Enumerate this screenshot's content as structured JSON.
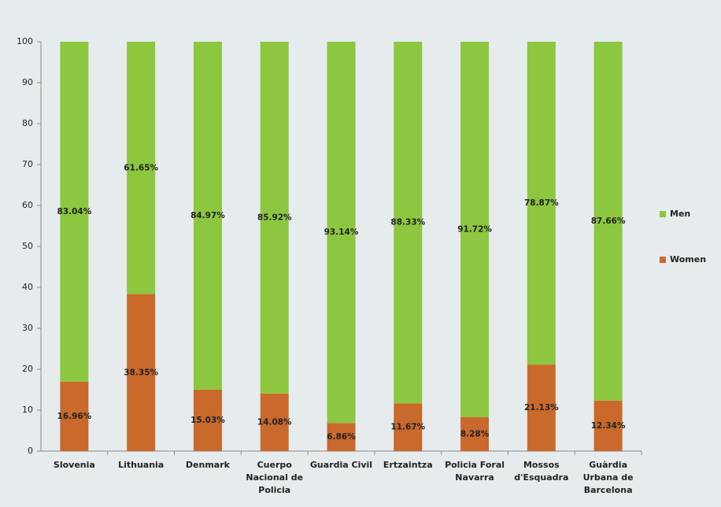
{
  "chart_data": {
    "type": "stacked_bar",
    "categories": [
      "Slovenia",
      "Lithuania",
      "Denmark",
      "Cuerpo Nacional de Policia",
      "Guardia Civil",
      "Ertzaintza",
      "Policia Foral Navarra",
      "Mossos d'Esquadra",
      "Guàrdia Urbana de Barcelona"
    ],
    "series": [
      {
        "name": "Women",
        "color": "#c9692c",
        "values": [
          16.96,
          38.35,
          15.03,
          14.08,
          6.86,
          11.67,
          8.28,
          21.13,
          12.34
        ],
        "value_labels": [
          "16.96%",
          "38.35%",
          "15.03%",
          "14.08%",
          "6.86%",
          "11.67%",
          "8.28%",
          "21.13%",
          "12.34%"
        ]
      },
      {
        "name": "Men",
        "color": "#8dc63f",
        "values": [
          83.04,
          61.65,
          84.97,
          85.92,
          93.14,
          88.33,
          91.72,
          78.87,
          87.66
        ],
        "value_labels": [
          "83.04%",
          "61.65%",
          "84.97%",
          "85.92%",
          "93.14%",
          "88.33%",
          "91.72%",
          "78.87%",
          "87.66%"
        ]
      }
    ],
    "ylim": [
      0,
      100
    ],
    "yticks": [
      0,
      10,
      20,
      30,
      40,
      50,
      60,
      70,
      80,
      90,
      100
    ],
    "legend": "right"
  }
}
